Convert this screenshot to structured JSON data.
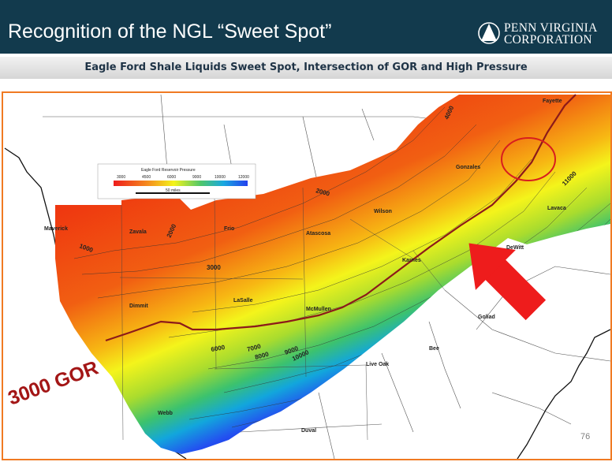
{
  "slide": {
    "title": "Recognition of the NGL “Sweet Spot”",
    "subtitle": "Eagle Ford Shale Liquids Sweet Spot, Intersection of GOR and High Pressure",
    "page_number": "76"
  },
  "logo": {
    "line1": "PENN VIRGINIA",
    "line2": "CORPORATION"
  },
  "map": {
    "gor_label": "3000 GOR",
    "legend": {
      "title": "Eagle Ford Reservoir Pressure",
      "ticks": [
        "3000",
        "4500",
        "6000",
        "9000",
        "10000",
        "12000"
      ],
      "scale_label": "50 miles"
    },
    "counties": [
      "Fayette",
      "Gonzales",
      "Wilson",
      "Atascosa",
      "Frio",
      "Zavala",
      "Maverick",
      "Dimmit",
      "LaSalle",
      "McMullen",
      "Karnes",
      "Goliad",
      "Bee",
      "Live Oak",
      "Webb",
      "Duval",
      "Lavaca",
      "DeWitt"
    ],
    "contours": [
      "1000",
      "2000",
      "2000",
      "3000",
      "4000",
      "6000",
      "7000",
      "8000",
      "9000",
      "10000",
      "11000"
    ],
    "colors": {
      "header": "#123a4d",
      "frame": "#f07a23",
      "gor_line": "#8c1a1a",
      "sweet_spot_circle": "#d81e1e",
      "arrow": "#ee1c1c"
    }
  }
}
